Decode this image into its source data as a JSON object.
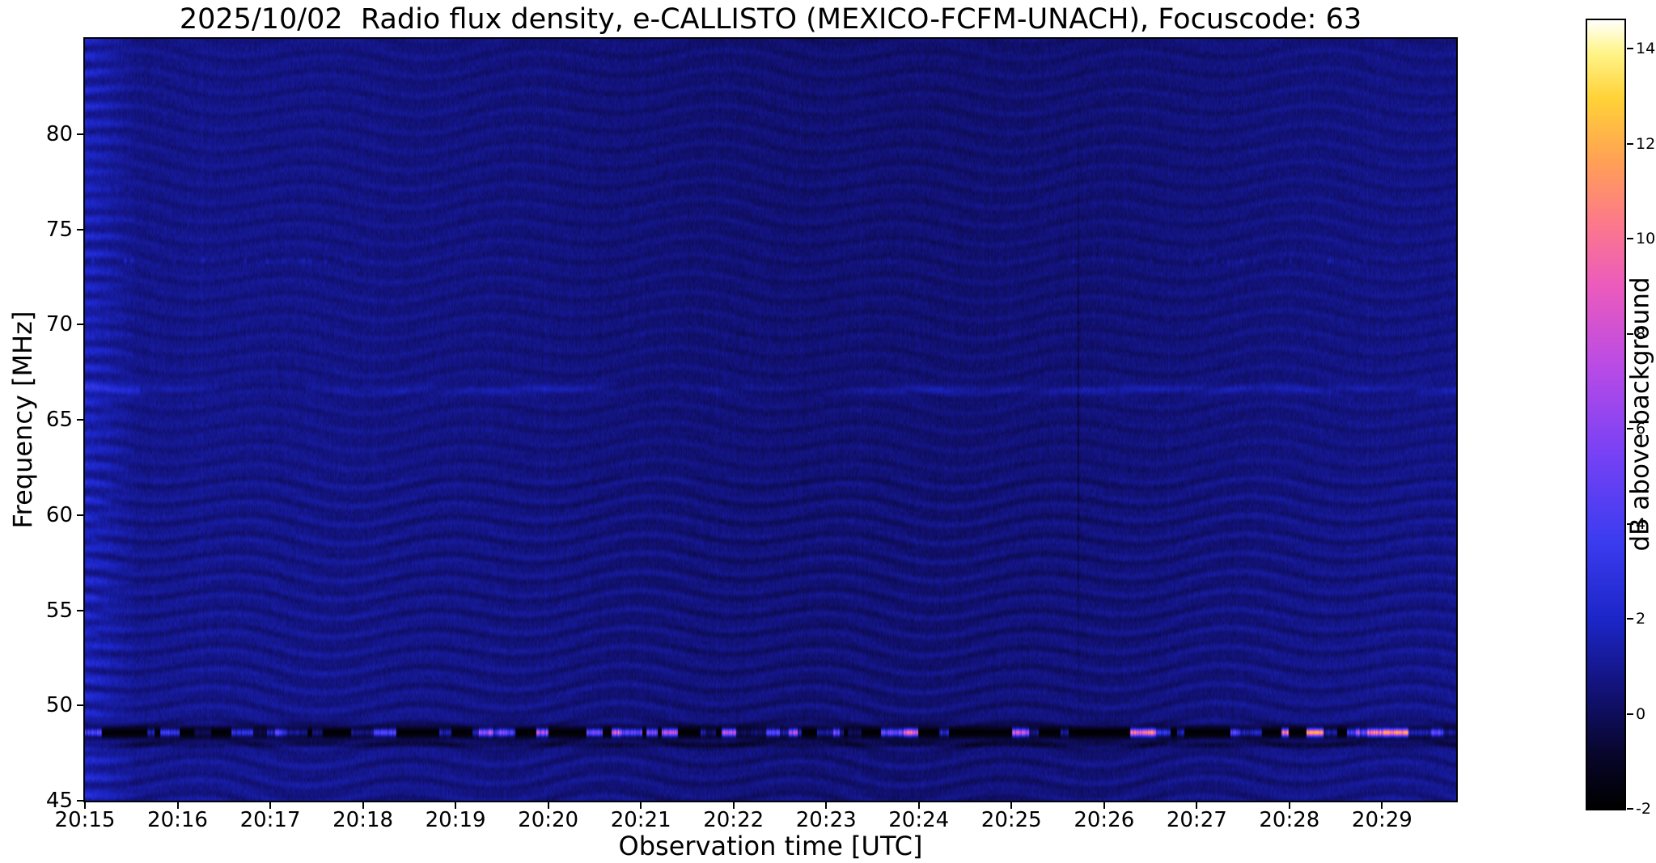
{
  "figure": {
    "title": "2025/10/02  Radio flux density, e-CALLISTO (MEXICO-FCFM-UNACH), Focuscode: 63",
    "xlabel": "Observation time [UTC]",
    "ylabel": "Frequency [MHz]",
    "colorbar_label": "dB above background",
    "background_color": "#ffffff",
    "text_color": "#000000"
  },
  "chart_data": {
    "type": "heatmap",
    "title": "2025/10/02  Radio flux density, e-CALLISTO (MEXICO-FCFM-UNACH), Focuscode: 63",
    "date": "2025/10/02",
    "station": "MEXICO-FCFM-UNACH",
    "focuscode": 63,
    "xlabel": "Observation time [UTC]",
    "ylabel": "Frequency [MHz]",
    "x_ticks": [
      "20:15",
      "20:16",
      "20:17",
      "20:18",
      "20:19",
      "20:20",
      "20:21",
      "20:22",
      "20:23",
      "20:24",
      "20:25",
      "20:26",
      "20:27",
      "20:28",
      "20:29"
    ],
    "x_span_minutes": 14.8,
    "y_ticks": [
      80,
      75,
      70,
      65,
      60,
      55,
      50,
      45
    ],
    "ylim": [
      45,
      85
    ],
    "grid": false,
    "background_level_db": 0.6,
    "colorbar": {
      "label": "dB above background",
      "ticks": [
        14,
        12,
        10,
        8,
        6,
        4,
        2,
        0,
        -2
      ],
      "vmin": -2,
      "vmax": 14.6,
      "colormap_stops": [
        {
          "t": 0.0,
          "c": [
            0,
            0,
            0
          ]
        },
        {
          "t": 0.07,
          "c": [
            8,
            6,
            45
          ]
        },
        {
          "t": 0.15,
          "c": [
            18,
            18,
            120
          ]
        },
        {
          "t": 0.24,
          "c": [
            28,
            38,
            200
          ]
        },
        {
          "t": 0.34,
          "c": [
            60,
            60,
            240
          ]
        },
        {
          "t": 0.45,
          "c": [
            120,
            65,
            245
          ]
        },
        {
          "t": 0.56,
          "c": [
            185,
            75,
            230
          ]
        },
        {
          "t": 0.66,
          "c": [
            235,
            90,
            190
          ]
        },
        {
          "t": 0.74,
          "c": [
            252,
            120,
            140
          ]
        },
        {
          "t": 0.82,
          "c": [
            255,
            160,
            85
          ]
        },
        {
          "t": 0.9,
          "c": [
            255,
            210,
            55
          ]
        },
        {
          "t": 0.96,
          "c": [
            255,
            245,
            140
          ]
        },
        {
          "t": 1.0,
          "c": [
            255,
            255,
            255
          ]
        }
      ]
    },
    "features": [
      {
        "name": "carrier-band",
        "freq_mhz": 48.6,
        "peak_db": 14,
        "description": "Strong intermittent narrowband carrier: dashed bright blobs (blue/magenta/orange/yellow, 3-14 dB) separated by black dropout gaps, running across the full time span"
      },
      {
        "name": "dark-edge-line",
        "freq_mhz": 48.1,
        "peak_db": -1,
        "description": "Thin dark strip just below the carrier band"
      },
      {
        "name": "weak-carrier",
        "freq_mhz": 66.6,
        "peak_db": 2,
        "description": "Faint patchy horizontal emission line ~1-2 dB, brighter between 20:26 and 20:28"
      },
      {
        "name": "speckle-line",
        "freq_mhz": 73.35,
        "peak_db": 3,
        "description": "Sporadic weak bright dots along a single channel"
      },
      {
        "name": "startup-artifact",
        "freq_mhz": null,
        "peak_db": 3,
        "description": "Brighter blue column with horizontal banding at the left edge (20:15:00-20:15:30)"
      },
      {
        "name": "interference-ripples",
        "freq_mhz": null,
        "peak_db": 1,
        "description": "Wavy horizontal fringe pattern of ~0.3-0.5 dB modulating the whole background"
      },
      {
        "name": "dark-vertical-line",
        "freq_mhz": null,
        "peak_db": -1,
        "description": "Narrow dark vertical dropout near 20:25:40 spanning mid frequencies"
      }
    ]
  }
}
